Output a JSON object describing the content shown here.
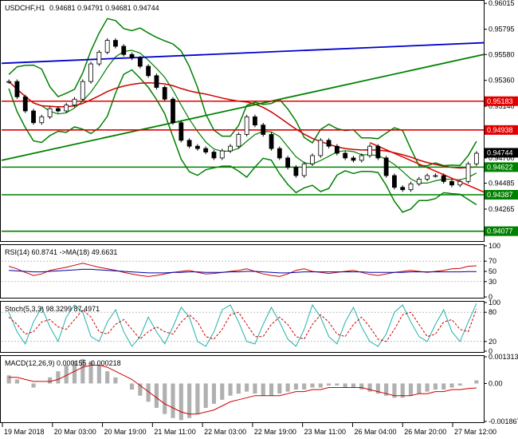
{
  "header": {
    "symbol_label": "USDCHF,H1",
    "ohlc_label": "0.94681 0.94791 0.94681 0.94744"
  },
  "price_panel": {
    "ylim": [
      0.94,
      0.9603
    ],
    "ticks": [
      "0.96015",
      "0.95795",
      "0.95580",
      "0.95360",
      "0.95140",
      "0.94700",
      "0.94485",
      "0.94265"
    ],
    "tick_values": [
      0.96015,
      0.95795,
      0.9558,
      0.9536,
      0.9514,
      0.947,
      0.94485,
      0.94265
    ],
    "levels": [
      {
        "name": "level-095183",
        "label": "0.95183",
        "value": 0.95183,
        "color": "#e00000",
        "box_color": "#e00000"
      },
      {
        "name": "level-094938",
        "label": "0.94938",
        "value": 0.94938,
        "color": "#e00000",
        "box_color": "#e00000"
      },
      {
        "name": "level-094622",
        "label": "0.94622",
        "value": 0.94622,
        "color": "#008000",
        "box_color": "#008000"
      },
      {
        "name": "level-094387",
        "label": "0.94387",
        "value": 0.94387,
        "color": "#008000",
        "box_color": "#008000"
      },
      {
        "name": "level-094077",
        "label": "0.94077",
        "value": 0.94077,
        "color": "#008000",
        "box_color": "#008000"
      }
    ],
    "current": {
      "label": "0.94744",
      "value": 0.94744
    }
  },
  "rsi_panel": {
    "label": "RSI(14) 60.8741  ->MA(18) 49.6631",
    "ticks": [
      "100",
      "70",
      "50",
      "30",
      "0"
    ],
    "tick_values": [
      100,
      70,
      50,
      30,
      0
    ]
  },
  "stoch_panel": {
    "label": "Stoch(5,3,3) 98.3299 87.4971",
    "ticks": [
      "100",
      "80",
      "20",
      "0"
    ],
    "tick_values": [
      100,
      80,
      20,
      0
    ]
  },
  "macd_panel": {
    "label": "MACD(12,26,9) 0.000155 -0.000218",
    "ticks": [
      "0.001313",
      "0.00",
      "-0.001867"
    ],
    "tick_values": [
      0.001313,
      0.0,
      -0.001867
    ]
  },
  "time_axis": {
    "labels": [
      "19 Mar 2018",
      "20 Mar 03:00",
      "20 Mar 19:00",
      "21 Mar 11:00",
      "22 Mar 03:00",
      "22 Mar 19:00",
      "23 Mar 11:00",
      "26 Mar 04:00",
      "26 Mar 20:00",
      "27 Mar 12:00"
    ]
  },
  "colors": {
    "bull_candle": "#ffffff",
    "bear_candle": "#000000",
    "bollinger": "#008000",
    "ma_red": "#cc0000",
    "trend_blue": "#0000cc",
    "trend_green": "#008000",
    "rsi": "#cc0000",
    "rsi_ma": "#0000aa",
    "stoch_main": "#20b2aa",
    "stoch_signal": "#cc0000",
    "macd_hist": "#b0b0b0",
    "macd_signal": "#cc0000"
  },
  "chart_data": [
    {
      "type": "line",
      "title": "USDCHF,H1",
      "ylim": [
        0.94,
        0.9603
      ],
      "series": [
        {
          "name": "price",
          "values": [
            0.9535,
            0.9522,
            0.951,
            0.95,
            0.9505,
            0.9512,
            0.951,
            0.9515,
            0.952,
            0.9535,
            0.955,
            0.956,
            0.957,
            0.9565,
            0.9558,
            0.9555,
            0.9548,
            0.954,
            0.953,
            0.952,
            0.95,
            0.9485,
            0.948,
            0.9478,
            0.9475,
            0.947,
            0.9476,
            0.948,
            0.949,
            0.9505,
            0.9498,
            0.949,
            0.9478,
            0.947,
            0.9462,
            0.9455,
            0.9465,
            0.9472,
            0.9485,
            0.948,
            0.9474,
            0.947,
            0.9468,
            0.9472,
            0.948,
            0.947,
            0.9455,
            0.9445,
            0.9443,
            0.9448,
            0.9452,
            0.9455,
            0.9455,
            0.945,
            0.9447,
            0.945,
            0.9465,
            0.9474
          ]
        }
      ]
    },
    {
      "type": "line",
      "title": "RSI(14)",
      "ylim": [
        0,
        100
      ],
      "series": [
        {
          "name": "RSI",
          "values": [
            60,
            55,
            48,
            42,
            45,
            52,
            55,
            58,
            62,
            66,
            62,
            58,
            55,
            52,
            48,
            45,
            42,
            40,
            42,
            45,
            48,
            50,
            52,
            48,
            45,
            46,
            48,
            50,
            52,
            55,
            50,
            45,
            42,
            40,
            45,
            52,
            55,
            50,
            48,
            46,
            48,
            50,
            52,
            48,
            44,
            42,
            45,
            48,
            50,
            52,
            50,
            48,
            50,
            52,
            55,
            56,
            60,
            61
          ]
        },
        {
          "name": "MA",
          "values": [
            52,
            51,
            50,
            49,
            49,
            50,
            51,
            52,
            53,
            54,
            54,
            53,
            52,
            51,
            50,
            49,
            48,
            47,
            47,
            47,
            48,
            48,
            49,
            49,
            48,
            48,
            48,
            49,
            49,
            50,
            50,
            49,
            48,
            47,
            47,
            48,
            49,
            49,
            49,
            49,
            49,
            49,
            49,
            49,
            48,
            48,
            48,
            48,
            48,
            49,
            49,
            49,
            49,
            49,
            49,
            49,
            49.5,
            49.6
          ]
        }
      ]
    },
    {
      "type": "line",
      "title": "Stoch(5,3,3)",
      "ylim": [
        0,
        100
      ],
      "series": [
        {
          "name": "main",
          "values": [
            80,
            40,
            15,
            60,
            90,
            50,
            20,
            70,
            95,
            80,
            30,
            20,
            60,
            85,
            40,
            10,
            30,
            70,
            40,
            15,
            50,
            90,
            70,
            20,
            10,
            40,
            85,
            95,
            60,
            20,
            15,
            55,
            90,
            60,
            25,
            10,
            45,
            95,
            70,
            30,
            15,
            60,
            90,
            50,
            20,
            10,
            35,
            80,
            95,
            60,
            30,
            20,
            55,
            85,
            40,
            20,
            60,
            98
          ]
        },
        {
          "name": "signal",
          "values": [
            70,
            55,
            35,
            40,
            60,
            65,
            50,
            45,
            65,
            85,
            70,
            40,
            35,
            55,
            65,
            45,
            25,
            40,
            50,
            40,
            35,
            60,
            75,
            60,
            30,
            25,
            45,
            75,
            80,
            55,
            30,
            30,
            55,
            70,
            55,
            30,
            25,
            55,
            75,
            60,
            35,
            30,
            55,
            70,
            50,
            25,
            20,
            45,
            75,
            80,
            55,
            30,
            35,
            60,
            65,
            45,
            40,
            87
          ]
        }
      ]
    },
    {
      "type": "bar",
      "title": "MACD(12,26,9)",
      "ylim": [
        -0.001867,
        0.001313
      ],
      "series": [
        {
          "name": "macd",
          "values": [
            0.0004,
            0.0002,
            0.0,
            -0.0002,
            0.0,
            0.0003,
            0.0006,
            0.0009,
            0.0011,
            0.0012,
            0.0011,
            0.0009,
            0.0006,
            0.0003,
            0.0,
            -0.0003,
            -0.0006,
            -0.0009,
            -0.0012,
            -0.0015,
            -0.0017,
            -0.0018,
            -0.0017,
            -0.0015,
            -0.0012,
            -0.001,
            -0.0008,
            -0.0006,
            -0.0005,
            -0.0004,
            -0.0005,
            -0.0006,
            -0.0006,
            -0.0005,
            -0.0004,
            -0.0003,
            -0.0003,
            -0.0002,
            -0.0002,
            -0.0001,
            -0.0001,
            -0.0002,
            -0.0002,
            -0.0003,
            -0.0004,
            -0.0005,
            -0.0006,
            -0.0007,
            -0.0007,
            -0.0006,
            -0.0005,
            -0.0004,
            -0.0003,
            -0.0003,
            -0.0002,
            -0.0001,
            0.0,
            0.000155
          ]
        },
        {
          "name": "signal",
          "values": [
            0.0003,
            0.0003,
            0.0002,
            0.0001,
            0.0001,
            0.0001,
            0.0002,
            0.0004,
            0.0006,
            0.0008,
            0.0009,
            0.0009,
            0.0008,
            0.0006,
            0.0004,
            0.0002,
            -0.0001,
            -0.0004,
            -0.0007,
            -0.001,
            -0.0012,
            -0.0014,
            -0.0015,
            -0.0015,
            -0.0014,
            -0.0013,
            -0.0011,
            -0.0009,
            -0.0008,
            -0.0007,
            -0.0006,
            -0.0006,
            -0.0006,
            -0.0006,
            -0.0005,
            -0.0004,
            -0.0004,
            -0.0003,
            -0.0003,
            -0.0002,
            -0.0002,
            -0.0002,
            -0.0002,
            -0.0002,
            -0.0003,
            -0.0004,
            -0.0005,
            -0.0006,
            -0.0006,
            -0.0006,
            -0.0005,
            -0.0005,
            -0.0004,
            -0.0004,
            -0.0003,
            -0.0003,
            -0.00025,
            -0.000218
          ]
        }
      ]
    }
  ]
}
